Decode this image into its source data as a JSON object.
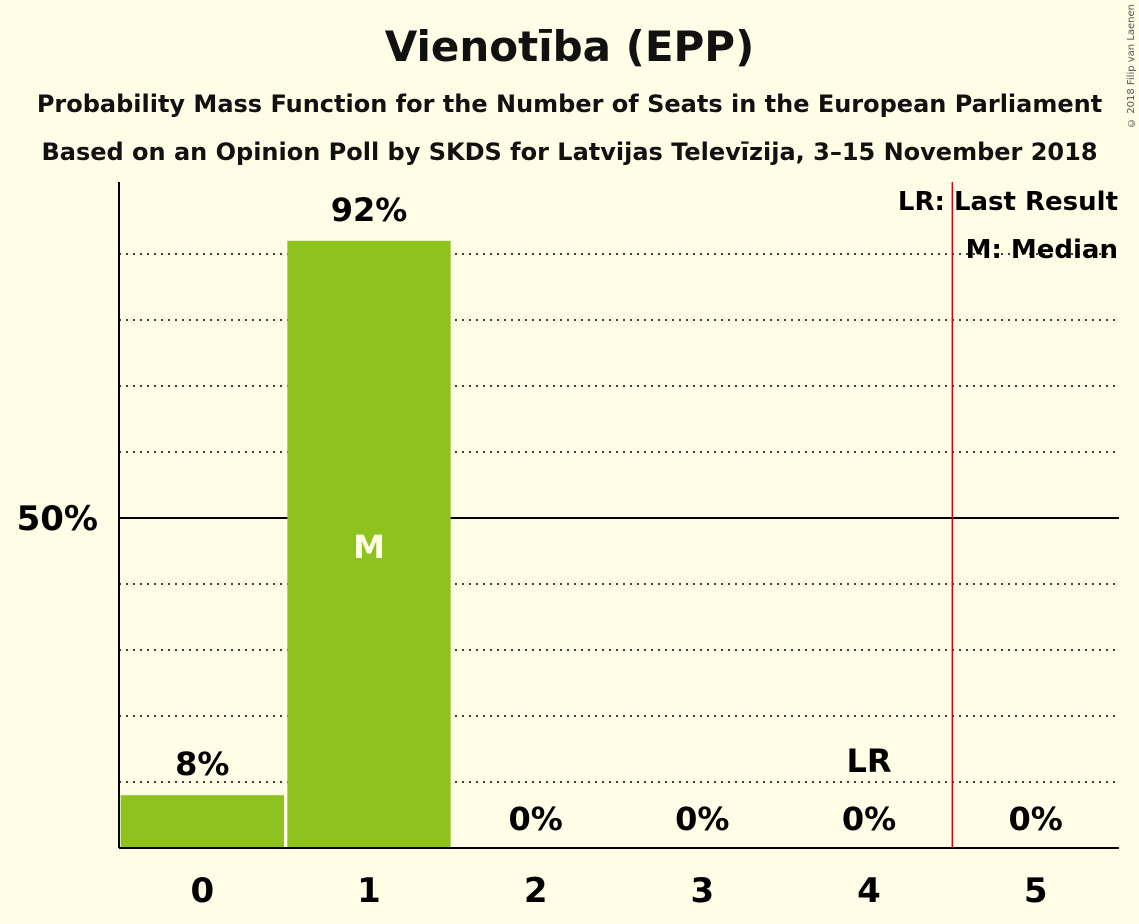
{
  "chart_data": {
    "type": "bar",
    "title": "Vienotība (EPP)",
    "subtitle": "Probability Mass Function for the Number of Seats in the European Parliament",
    "subtitle2": "Based on an Opinion Poll by SKDS for Latvijas Televīzija, 3–15 November 2018",
    "categories": [
      "0",
      "1",
      "2",
      "3",
      "4",
      "5"
    ],
    "values": [
      8,
      92,
      0,
      0,
      0,
      0
    ],
    "value_labels": [
      "8%",
      "92%",
      "0%",
      "0%",
      "0%",
      "0%"
    ],
    "ylim": [
      0,
      100
    ],
    "y_tick_label": "50%",
    "y_tick_value": 50,
    "gridlines": [
      10,
      20,
      30,
      40,
      60,
      70,
      80,
      90
    ],
    "median_seat": "1",
    "median_marker": "M",
    "last_result_seat": "4",
    "last_result_marker": "LR",
    "legend": {
      "position": "top-right",
      "entries": [
        "LR: Last Result",
        "M: Median"
      ]
    },
    "colors": {
      "bar": "#8DC21F",
      "background": "#FFFDE6",
      "last_result_line": "#D0021B",
      "median_text": "#FFFDE6"
    }
  },
  "copyright": "© 2018 Filip van Laenen"
}
